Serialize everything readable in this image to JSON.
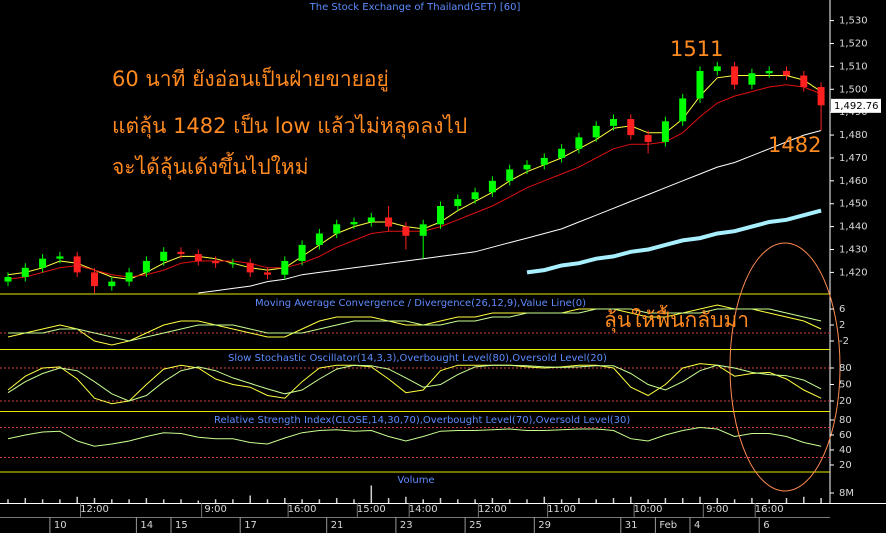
{
  "chart_data": [
    {
      "type": "candlestick",
      "title": "The Stock Exchange of Thailand(SET) [60]",
      "up_color": "#00ff00",
      "down_color": "#ff2020",
      "opens": [
        1416,
        1418,
        1422,
        1426,
        1427,
        1420,
        1414,
        1416,
        1420,
        1425,
        1429,
        1428,
        1425,
        1424,
        1424,
        1420,
        1419,
        1425,
        1432,
        1437,
        1441,
        1442,
        1444,
        1440,
        1436,
        1441,
        1449,
        1452,
        1455,
        1460,
        1465,
        1467,
        1470,
        1474,
        1479,
        1484,
        1487,
        1480,
        1477,
        1486,
        1496,
        1508,
        1510,
        1502,
        1507,
        1508,
        1506,
        1501
      ],
      "highs": [
        1420,
        1424,
        1428,
        1429,
        1429,
        1422,
        1418,
        1422,
        1427,
        1431,
        1431,
        1430,
        1427,
        1426,
        1426,
        1422,
        1427,
        1434,
        1439,
        1443,
        1444,
        1446,
        1449,
        1442,
        1443,
        1451,
        1454,
        1457,
        1462,
        1467,
        1469,
        1472,
        1476,
        1481,
        1486,
        1489,
        1489,
        1482,
        1488,
        1498,
        1510,
        1512,
        1512,
        1509,
        1510,
        1510,
        1508,
        1503
      ],
      "lows": [
        1414,
        1416,
        1420,
        1424,
        1418,
        1411,
        1412,
        1414,
        1418,
        1423,
        1426,
        1423,
        1422,
        1422,
        1418,
        1417,
        1417,
        1423,
        1430,
        1435,
        1439,
        1440,
        1438,
        1430,
        1426,
        1439,
        1447,
        1450,
        1453,
        1458,
        1463,
        1465,
        1468,
        1472,
        1477,
        1482,
        1478,
        1472,
        1475,
        1484,
        1494,
        1506,
        1500,
        1500,
        1505,
        1504,
        1499,
        1482
      ],
      "closes": [
        1418,
        1422,
        1426,
        1427,
        1420,
        1414,
        1416,
        1420,
        1425,
        1429,
        1428,
        1425,
        1424,
        1424,
        1420,
        1419,
        1425,
        1432,
        1437,
        1441,
        1442,
        1444,
        1440,
        1436,
        1441,
        1449,
        1452,
        1455,
        1460,
        1465,
        1467,
        1470,
        1474,
        1479,
        1484,
        1487,
        1480,
        1477,
        1486,
        1496,
        1508,
        1510,
        1502,
        1507,
        1508,
        1506,
        1501,
        1493
      ],
      "series": [
        {
          "color": "#ffff40",
          "width": 1,
          "values": [
            1419,
            1420,
            1422,
            1425,
            1424,
            1421,
            1418,
            1417,
            1420,
            1424,
            1427,
            1427,
            1426,
            1424,
            1422,
            1421,
            1422,
            1427,
            1432,
            1437,
            1440,
            1442,
            1442,
            1440,
            1439,
            1442,
            1447,
            1451,
            1455,
            1460,
            1464,
            1467,
            1470,
            1474,
            1478,
            1483,
            1484,
            1481,
            1481,
            1487,
            1497,
            1505,
            1506,
            1506,
            1506,
            1506,
            1504,
            1499
          ]
        },
        {
          "color": "#e01010",
          "width": 1,
          "values": [
            1417,
            1418,
            1420,
            1422,
            1423,
            1421,
            1419,
            1418,
            1419,
            1421,
            1424,
            1425,
            1425,
            1425,
            1424,
            1422,
            1422,
            1424,
            1427,
            1431,
            1434,
            1437,
            1438,
            1438,
            1438,
            1440,
            1443,
            1446,
            1449,
            1453,
            1457,
            1460,
            1463,
            1466,
            1470,
            1474,
            1476,
            1476,
            1477,
            1481,
            1488,
            1494,
            1497,
            1499,
            1501,
            1502,
            1501,
            1498
          ]
        },
        {
          "color": "#ffffff",
          "width": 1,
          "values": [
            null,
            null,
            null,
            null,
            null,
            null,
            null,
            null,
            null,
            null,
            null,
            1411,
            1412,
            1413,
            1414,
            1416,
            1417,
            1419,
            1420,
            1421,
            1422,
            1423,
            1424,
            1425,
            1426,
            1427,
            1428,
            1429,
            1431,
            1433,
            1435,
            1437,
            1439,
            1442,
            1445,
            1448,
            1451,
            1454,
            1457,
            1460,
            1463,
            1466,
            1468,
            1471,
            1474,
            1477,
            1480,
            1482
          ]
        },
        {
          "color": "#a8f0ff",
          "width": 4,
          "values": [
            null,
            null,
            null,
            null,
            null,
            null,
            null,
            null,
            null,
            null,
            null,
            null,
            null,
            null,
            null,
            null,
            null,
            null,
            null,
            null,
            null,
            null,
            null,
            null,
            null,
            null,
            null,
            null,
            null,
            null,
            1420,
            1421,
            1423,
            1424,
            1426,
            1427,
            1429,
            1430,
            1432,
            1434,
            1435,
            1437,
            1438,
            1440,
            1442,
            1443,
            1445,
            1447
          ]
        }
      ],
      "ylim": [
        1411,
        1539
      ],
      "yticks": [
        {
          "value": 1420,
          "label": "1,420"
        },
        {
          "value": 1430,
          "label": "1,430"
        },
        {
          "value": 1440,
          "label": "1,440"
        },
        {
          "value": 1450,
          "label": "1,450"
        },
        {
          "value": 1460,
          "label": "1,460"
        },
        {
          "value": 1470,
          "label": "1,470"
        },
        {
          "value": 1480,
          "label": "1,480"
        },
        {
          "value": 1490,
          "label": "1,490"
        },
        {
          "value": 1500,
          "label": "1,500"
        },
        {
          "value": 1510,
          "label": "1,510"
        },
        {
          "value": 1520,
          "label": "1,520"
        },
        {
          "value": 1530,
          "label": "1,530"
        }
      ],
      "last_price": {
        "value": 1492.76,
        "label": "1,492.76"
      },
      "time_labels": [
        null,
        null,
        null,
        null,
        null,
        "12:00",
        null,
        null,
        null,
        null,
        null,
        null,
        "9:00",
        null,
        null,
        null,
        null,
        "16:00",
        null,
        null,
        null,
        "15:00",
        null,
        null,
        "14:00",
        null,
        null,
        null,
        "12:00",
        null,
        null,
        null,
        "11:00",
        null,
        null,
        null,
        null,
        "10:00",
        null,
        null,
        null,
        "9:00",
        null,
        null,
        "16:00",
        null,
        null,
        null
      ],
      "date_labels": [
        null,
        null,
        null,
        "10",
        null,
        null,
        null,
        null,
        "14",
        null,
        "15",
        null,
        null,
        null,
        "17",
        null,
        null,
        null,
        null,
        "21",
        null,
        null,
        null,
        "23",
        null,
        null,
        null,
        "25",
        null,
        null,
        null,
        "29",
        null,
        null,
        null,
        null,
        "31",
        null,
        "Feb",
        null,
        "4",
        null,
        null,
        null,
        "6",
        null,
        null,
        null
      ],
      "annotations": [
        "60 นาที ยังอ่อนเป็นฝ่ายขายอยู่",
        "แต่ลุ้น 1482 เป็น low แล้วไม่หลุดลงไป",
        "จะได้ลุ้นเด้งขึ้นไปใหม่",
        "1511",
        "1482",
        "ลุ้นให้ฟื้นกลับมา"
      ]
    },
    {
      "type": "line",
      "title": "Moving Average Convergence / Divergence(26,12,9),Value Line(0)",
      "series": [
        {
          "color": "#ffff40",
          "width": 1,
          "values": [
            -1,
            0,
            1,
            2,
            1,
            -2,
            -3,
            -2,
            0,
            2,
            3,
            3,
            2,
            1,
            0,
            -1,
            -1,
            1,
            3,
            4,
            4,
            4,
            3,
            2,
            2,
            3,
            4,
            4,
            5,
            5,
            5,
            5,
            5,
            6,
            6,
            6,
            5,
            4,
            4,
            5,
            6,
            7,
            6,
            6,
            5,
            4,
            3,
            1
          ]
        },
        {
          "color": "#c8ff90",
          "width": 1,
          "values": [
            0,
            0,
            0,
            1,
            1,
            0,
            -1,
            -2,
            -1,
            0,
            1,
            2,
            2,
            2,
            1,
            0,
            0,
            0,
            1,
            2,
            3,
            3,
            3,
            3,
            2,
            2,
            3,
            3,
            4,
            4,
            5,
            5,
            5,
            5,
            6,
            6,
            6,
            5,
            5,
            5,
            5,
            6,
            6,
            6,
            6,
            5,
            4,
            3
          ]
        }
      ],
      "levels": [
        0
      ],
      "ylim": [
        -3.75,
        9.5
      ],
      "yticks": [
        6,
        2,
        -2
      ]
    },
    {
      "type": "line",
      "title": "Slow Stochastic Oscillator(14,3,3),Overbought Level(80),Oversold Level(20)",
      "series": [
        {
          "color": "#ffff40",
          "width": 1,
          "values": [
            40,
            65,
            80,
            82,
            60,
            25,
            15,
            20,
            50,
            78,
            85,
            80,
            60,
            50,
            45,
            30,
            25,
            55,
            80,
            85,
            85,
            82,
            60,
            35,
            40,
            75,
            85,
            85,
            85,
            85,
            82,
            80,
            82,
            85,
            85,
            80,
            45,
            30,
            50,
            80,
            88,
            85,
            65,
            70,
            72,
            60,
            40,
            25
          ]
        },
        {
          "color": "#c8ff90",
          "width": 1,
          "values": [
            35,
            55,
            70,
            80,
            75,
            55,
            33,
            20,
            30,
            55,
            75,
            82,
            75,
            62,
            52,
            42,
            33,
            40,
            60,
            78,
            85,
            84,
            78,
            62,
            45,
            50,
            68,
            82,
            85,
            85,
            84,
            82,
            81,
            82,
            84,
            84,
            70,
            50,
            40,
            55,
            75,
            85,
            80,
            72,
            68,
            66,
            58,
            42
          ]
        }
      ],
      "levels": [
        80,
        20
      ],
      "ylim": [
        3.6,
        112.7
      ],
      "yticks": [
        80,
        50,
        20
      ]
    },
    {
      "type": "line",
      "title": "Relative Strength Index(CLOSE,14,30,70),Overbought Level(70),Oversold Level(30)",
      "series": [
        {
          "color": "#c8ff90",
          "width": 1,
          "values": [
            55,
            60,
            64,
            65,
            52,
            45,
            48,
            52,
            58,
            63,
            62,
            57,
            55,
            55,
            50,
            48,
            56,
            63,
            66,
            67,
            65,
            66,
            58,
            52,
            58,
            65,
            66,
            66,
            67,
            68,
            66,
            66,
            67,
            68,
            68,
            66,
            55,
            52,
            60,
            66,
            70,
            68,
            58,
            62,
            62,
            58,
            50,
            45
          ]
        }
      ],
      "levels": [
        70,
        30
      ],
      "ylim": [
        13.3,
        89.3
      ],
      "yticks": [
        80,
        60,
        40,
        20
      ]
    },
    {
      "type": "bar",
      "title": "Volume",
      "color": "#d0d0d0",
      "values": [
        3,
        4,
        3,
        3,
        5,
        4,
        3,
        3,
        4,
        3,
        3,
        2,
        3,
        3,
        6,
        3,
        4,
        3,
        3,
        4,
        3,
        14,
        4,
        5,
        3,
        4,
        3,
        3,
        4,
        3,
        3,
        5,
        3,
        4,
        3,
        4,
        5,
        3,
        4,
        4,
        5,
        4,
        3,
        4,
        3,
        4,
        5,
        4
      ],
      "ylim": [
        0,
        24
      ],
      "yticks": [
        {
          "value": 8,
          "label": "8M"
        }
      ]
    }
  ]
}
